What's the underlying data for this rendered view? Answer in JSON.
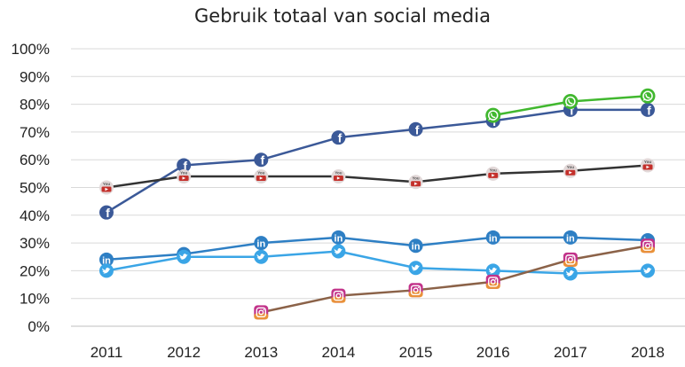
{
  "chart_data": {
    "type": "line",
    "title": "Gebruik totaal van social media",
    "xlabel": "",
    "ylabel": "",
    "x": [
      "2011",
      "2012",
      "2013",
      "2014",
      "2015",
      "2016",
      "2017",
      "2018"
    ],
    "y_ticks": [
      "0%",
      "10%",
      "20%",
      "30%",
      "40%",
      "50%",
      "60%",
      "70%",
      "80%",
      "90%",
      "100%"
    ],
    "ylim": [
      0,
      100
    ],
    "grid": true,
    "legend": "none (platform icons on markers)",
    "series": [
      {
        "icon": "facebook-icon",
        "color": "#3b5998",
        "values": [
          41,
          58,
          60,
          68,
          71,
          74,
          78,
          78
        ]
      },
      {
        "icon": "youtube-icon",
        "color": "#333333",
        "values": [
          50,
          54,
          54,
          54,
          52,
          55,
          56,
          58
        ]
      },
      {
        "icon": "linkedin-icon",
        "color": "#2e7fc4",
        "values": [
          24,
          26,
          30,
          32,
          29,
          32,
          32,
          31
        ]
      },
      {
        "icon": "twitter-icon",
        "color": "#3aa5e6",
        "values": [
          20,
          25,
          25,
          27,
          21,
          20,
          19,
          20
        ]
      },
      {
        "icon": "instagram-icon",
        "color": "#8b6248",
        "values": [
          null,
          null,
          5,
          11,
          13,
          16,
          24,
          29
        ]
      },
      {
        "icon": "whatsapp-icon",
        "color": "#41b82f",
        "values": [
          null,
          null,
          null,
          null,
          null,
          76,
          81,
          83
        ]
      }
    ]
  }
}
